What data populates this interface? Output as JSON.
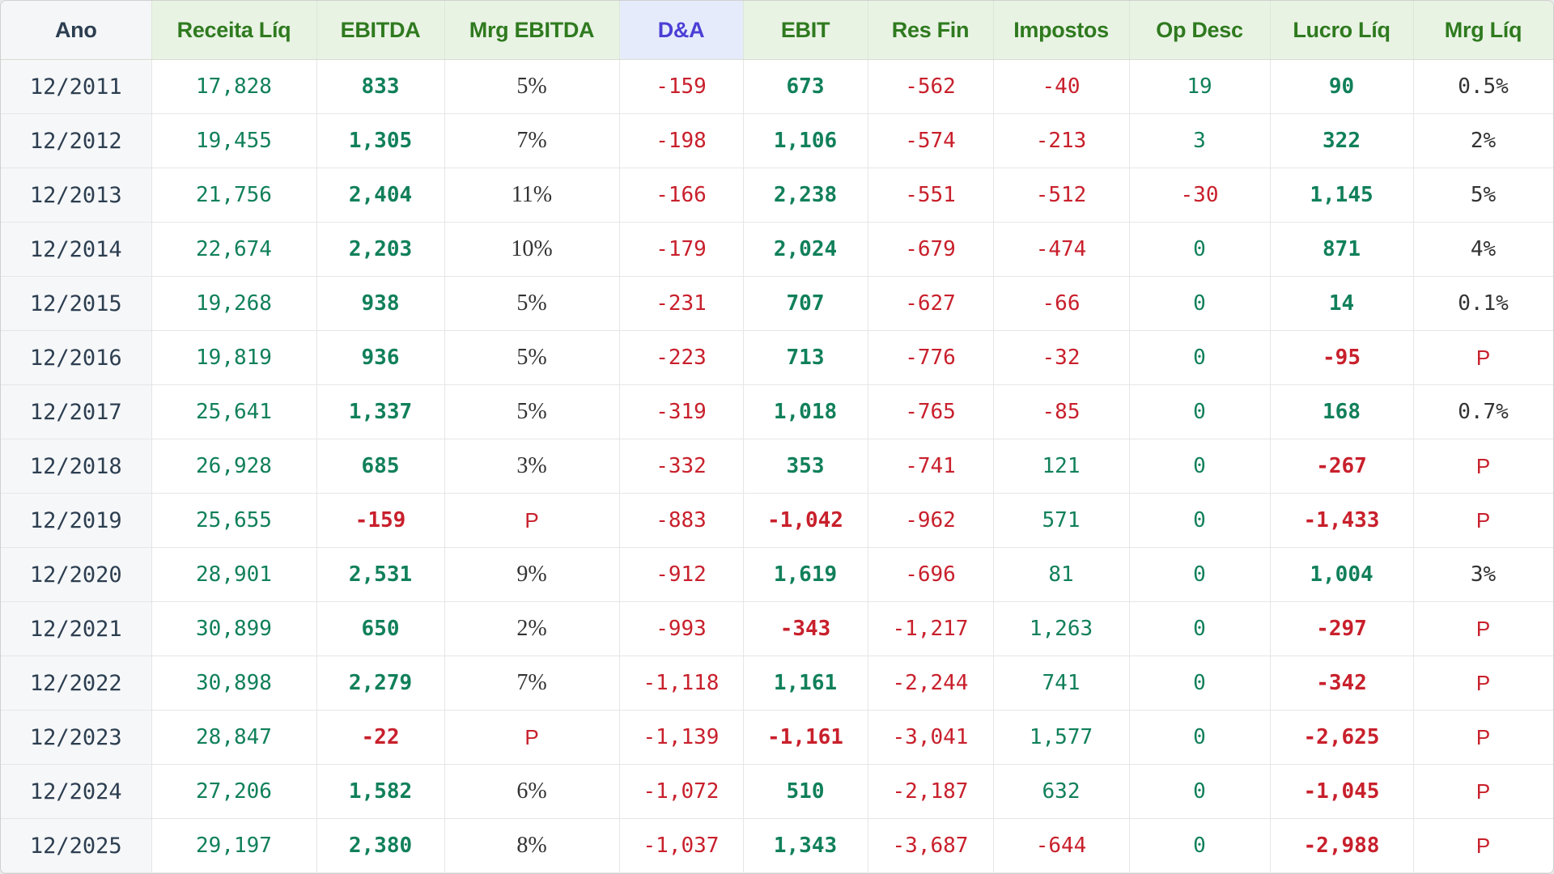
{
  "columns": [
    "Ano",
    "Receita Líq",
    "EBITDA",
    "Mrg EBITDA",
    "D&A",
    "EBIT",
    "Res Fin",
    "Impostos",
    "Op Desc",
    "Lucro Líq",
    "Mrg Líq"
  ],
  "colors": {
    "positive": "#11805a",
    "negative": "#c8202c",
    "header_green": "#2f7a1f",
    "header_blue": "#4b3fd6",
    "neutral": "#333333"
  },
  "rows": [
    [
      "12/2011",
      "17,828",
      "833",
      "5%",
      "-159",
      "673",
      "-562",
      "-40",
      "19",
      "90",
      "0.5%"
    ],
    [
      "12/2012",
      "19,455",
      "1,305",
      "7%",
      "-198",
      "1,106",
      "-574",
      "-213",
      "3",
      "322",
      "2%"
    ],
    [
      "12/2013",
      "21,756",
      "2,404",
      "11%",
      "-166",
      "2,238",
      "-551",
      "-512",
      "-30",
      "1,145",
      "5%"
    ],
    [
      "12/2014",
      "22,674",
      "2,203",
      "10%",
      "-179",
      "2,024",
      "-679",
      "-474",
      "0",
      "871",
      "4%"
    ],
    [
      "12/2015",
      "19,268",
      "938",
      "5%",
      "-231",
      "707",
      "-627",
      "-66",
      "0",
      "14",
      "0.1%"
    ],
    [
      "12/2016",
      "19,819",
      "936",
      "5%",
      "-223",
      "713",
      "-776",
      "-32",
      "0",
      "-95",
      "P"
    ],
    [
      "12/2017",
      "25,641",
      "1,337",
      "5%",
      "-319",
      "1,018",
      "-765",
      "-85",
      "0",
      "168",
      "0.7%"
    ],
    [
      "12/2018",
      "26,928",
      "685",
      "3%",
      "-332",
      "353",
      "-741",
      "121",
      "0",
      "-267",
      "P"
    ],
    [
      "12/2019",
      "25,655",
      "-159",
      "P",
      "-883",
      "-1,042",
      "-962",
      "571",
      "0",
      "-1,433",
      "P"
    ],
    [
      "12/2020",
      "28,901",
      "2,531",
      "9%",
      "-912",
      "1,619",
      "-696",
      "81",
      "0",
      "1,004",
      "3%"
    ],
    [
      "12/2021",
      "30,899",
      "650",
      "2%",
      "-993",
      "-343",
      "-1,217",
      "1,263",
      "0",
      "-297",
      "P"
    ],
    [
      "12/2022",
      "30,898",
      "2,279",
      "7%",
      "-1,118",
      "1,161",
      "-2,244",
      "741",
      "0",
      "-342",
      "P"
    ],
    [
      "12/2023",
      "28,847",
      "-22",
      "P",
      "-1,139",
      "-1,161",
      "-3,041",
      "1,577",
      "0",
      "-2,625",
      "P"
    ],
    [
      "12/2024",
      "27,206",
      "1,582",
      "6%",
      "-1,072",
      "510",
      "-2,187",
      "632",
      "0",
      "-1,045",
      "P"
    ],
    [
      "12/2025",
      "29,197",
      "2,380",
      "8%",
      "-1,037",
      "1,343",
      "-3,687",
      "-644",
      "0",
      "-2,988",
      "P"
    ]
  ]
}
